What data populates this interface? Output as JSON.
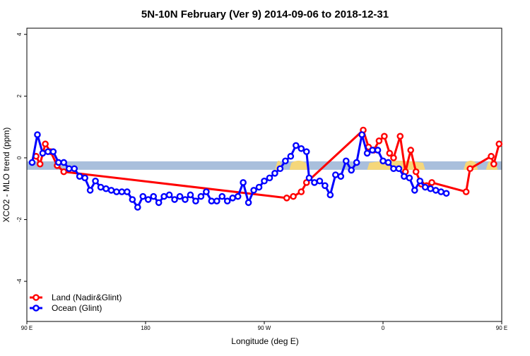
{
  "chart_data": {
    "type": "line",
    "title": "5N-10N February (Ver 9)   2014-09-06 to 2018-12-31",
    "xlabel": "Longitude (deg E)",
    "ylabel": "XCO2 - MLO trend (ppm)",
    "xlim": [
      90,
      450
    ],
    "ylim": [
      -5.3,
      4.2
    ],
    "x_ticks": [
      {
        "value": 90,
        "label": "90 E"
      },
      {
        "value": 180,
        "label": "180"
      },
      {
        "value": 270,
        "label": "90 W"
      },
      {
        "value": 360,
        "label": "0"
      },
      {
        "value": 450,
        "label": "90 E"
      },
      {
        "value": 540,
        "label": "180"
      }
    ],
    "y_ticks": [
      -4,
      -2,
      0,
      2,
      4
    ],
    "grid": false,
    "legend_position": "bottom-left",
    "reference_band": {
      "y_center": -0.25,
      "color": "#a9bfdc",
      "land_color": "#f5d77a"
    },
    "land_segments_x": [
      [
        278,
        284
      ],
      [
        289,
        303
      ],
      [
        348,
        392
      ],
      [
        421,
        432
      ],
      [
        438,
        447
      ]
    ],
    "series": [
      {
        "name": "Land (Nadir&Glint)",
        "color": "#ff0000",
        "points": [
          [
            97,
            0.05
          ],
          [
            100,
            -0.2
          ],
          [
            104,
            0.45
          ],
          [
            108,
            0.2
          ],
          [
            113,
            -0.25
          ],
          [
            118,
            -0.45
          ],
          [
            287,
            -1.3
          ],
          [
            292,
            -1.25
          ],
          [
            298,
            -1.1
          ],
          [
            302,
            -0.8
          ],
          [
            345,
            0.9
          ],
          [
            349,
            0.35
          ],
          [
            353,
            0.25
          ],
          [
            357,
            0.55
          ],
          [
            361,
            0.7
          ],
          [
            365,
            0.15
          ],
          [
            368,
            0.0
          ],
          [
            373,
            0.7
          ],
          [
            377,
            -0.45
          ],
          [
            381,
            0.25
          ],
          [
            385,
            -0.45
          ],
          [
            389,
            -0.85
          ],
          [
            393,
            -0.9
          ],
          [
            397,
            -0.8
          ],
          [
            423,
            -1.1
          ],
          [
            426,
            -0.35
          ],
          [
            442,
            0.05
          ],
          [
            444,
            -0.2
          ],
          [
            448,
            0.45
          ],
          [
            452,
            0.2
          ],
          [
            457,
            -0.25
          ],
          [
            462,
            -0.45
          ]
        ]
      },
      {
        "name": "Ocean (Glint)",
        "color": "#0000ff",
        "points": [
          [
            94,
            -0.15
          ],
          [
            98,
            0.75
          ],
          [
            102,
            0.15
          ],
          [
            106,
            0.2
          ],
          [
            110,
            0.2
          ],
          [
            114,
            -0.15
          ],
          [
            118,
            -0.15
          ],
          [
            122,
            -0.35
          ],
          [
            126,
            -0.35
          ],
          [
            130,
            -0.6
          ],
          [
            134,
            -0.65
          ],
          [
            138,
            -1.05
          ],
          [
            142,
            -0.75
          ],
          [
            146,
            -0.95
          ],
          [
            150,
            -1.0
          ],
          [
            154,
            -1.05
          ],
          [
            158,
            -1.1
          ],
          [
            162,
            -1.1
          ],
          [
            166,
            -1.1
          ],
          [
            170,
            -1.35
          ],
          [
            174,
            -1.6
          ],
          [
            178,
            -1.25
          ],
          [
            182,
            -1.35
          ],
          [
            186,
            -1.25
          ],
          [
            190,
            -1.45
          ],
          [
            194,
            -1.25
          ],
          [
            198,
            -1.2
          ],
          [
            202,
            -1.35
          ],
          [
            206,
            -1.25
          ],
          [
            210,
            -1.35
          ],
          [
            214,
            -1.2
          ],
          [
            218,
            -1.4
          ],
          [
            222,
            -1.25
          ],
          [
            226,
            -1.1
          ],
          [
            230,
            -1.4
          ],
          [
            234,
            -1.4
          ],
          [
            238,
            -1.25
          ],
          [
            242,
            -1.4
          ],
          [
            246,
            -1.3
          ],
          [
            250,
            -1.25
          ],
          [
            254,
            -0.8
          ],
          [
            258,
            -1.45
          ],
          [
            262,
            -1.05
          ],
          [
            266,
            -0.95
          ],
          [
            270,
            -0.75
          ],
          [
            274,
            -0.65
          ],
          [
            278,
            -0.5
          ],
          [
            282,
            -0.35
          ],
          [
            286,
            -0.1
          ],
          [
            290,
            0.05
          ],
          [
            294,
            0.4
          ],
          [
            298,
            0.3
          ],
          [
            302,
            0.2
          ],
          [
            304,
            -0.65
          ],
          [
            308,
            -0.8
          ],
          [
            312,
            -0.75
          ],
          [
            316,
            -0.9
          ],
          [
            320,
            -1.2
          ],
          [
            324,
            -0.55
          ],
          [
            328,
            -0.6
          ],
          [
            332,
            -0.1
          ],
          [
            336,
            -0.4
          ],
          [
            340,
            -0.15
          ],
          [
            344,
            0.75
          ],
          [
            348,
            0.15
          ],
          [
            352,
            0.25
          ],
          [
            356,
            0.25
          ],
          [
            360,
            -0.1
          ],
          [
            364,
            -0.15
          ],
          [
            368,
            -0.35
          ],
          [
            372,
            -0.35
          ],
          [
            376,
            -0.6
          ],
          [
            380,
            -0.65
          ],
          [
            384,
            -1.05
          ],
          [
            388,
            -0.75
          ],
          [
            392,
            -0.95
          ],
          [
            396,
            -1.0
          ],
          [
            400,
            -1.05
          ],
          [
            404,
            -1.1
          ],
          [
            408,
            -1.15
          ]
        ]
      }
    ]
  }
}
